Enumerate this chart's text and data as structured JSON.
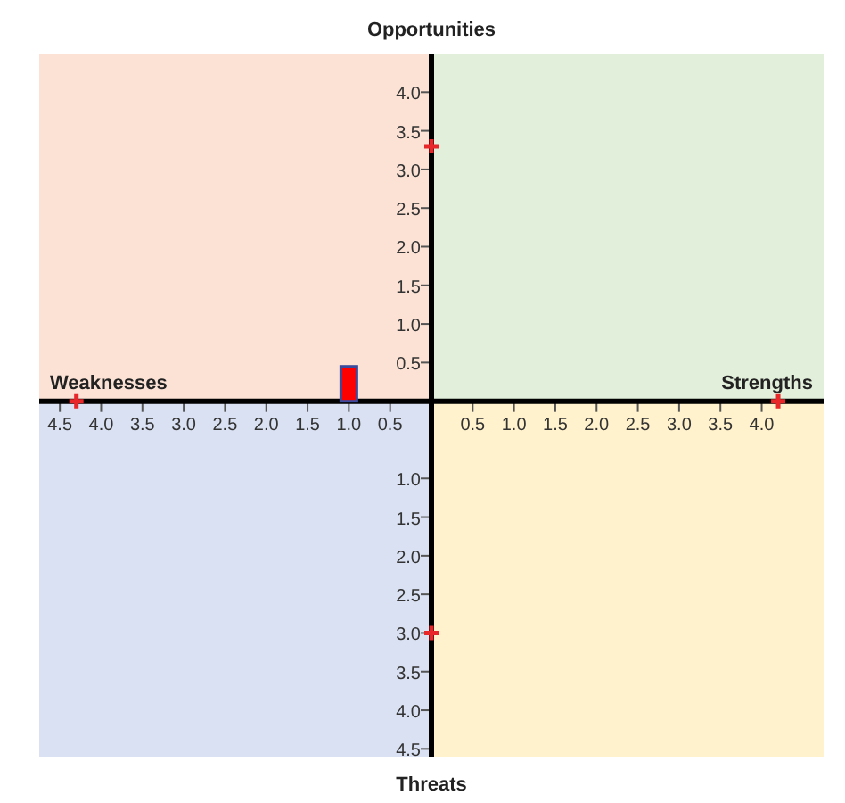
{
  "chart_data": {
    "type": "scatter",
    "xlim": [
      -4.75,
      4.75
    ],
    "ylim": [
      -4.6,
      4.5
    ],
    "xticks": [
      {
        "value": -4.5,
        "label": "4.5"
      },
      {
        "value": -4,
        "label": "4.0"
      },
      {
        "value": -3.5,
        "label": "3.5"
      },
      {
        "value": -3,
        "label": "3.0"
      },
      {
        "value": -2.5,
        "label": "2.5"
      },
      {
        "value": -2,
        "label": "2.0"
      },
      {
        "value": -1.5,
        "label": "1.5"
      },
      {
        "value": -1,
        "label": "1.0"
      },
      {
        "value": -0.5,
        "label": "0.5"
      },
      0.5,
      {
        "value": 1,
        "label": "1.0"
      },
      1.5,
      {
        "value": 2,
        "label": "2.0"
      },
      2.5,
      {
        "value": 3,
        "label": "3.0"
      },
      3.5,
      {
        "value": 4,
        "label": "4.0"
      }
    ],
    "yticks": [
      {
        "value": -4.5,
        "label": "4.5"
      },
      {
        "value": -4,
        "label": "4.0"
      },
      {
        "value": -3.5,
        "label": "3.5"
      },
      {
        "value": -3,
        "label": "3.0"
      },
      {
        "value": -2.5,
        "label": "2.5"
      },
      {
        "value": -2,
        "label": "2.0"
      },
      {
        "value": -1.5,
        "label": "1.5"
      },
      {
        "value": -1,
        "label": "1.0"
      },
      0.5,
      {
        "value": 1,
        "label": "1.0"
      },
      1.5,
      {
        "value": 2,
        "label": "2.0"
      },
      2.5,
      {
        "value": 3,
        "label": "3.0"
      },
      3.5,
      {
        "value": 4,
        "label": "4.0"
      }
    ],
    "marker": "cross",
    "series": [
      {
        "color": "#e8272a",
        "x": [
          4.2,
          -4.3,
          0,
          0
        ],
        "values": [
          0,
          0,
          3.3,
          -3.0
        ]
      },
      {
        "type": "bar",
        "color": "#ff0000",
        "x": [
          -1.0
        ],
        "values": [
          0.45
        ]
      }
    ],
    "annotations": [
      "Opportunities",
      "Weaknesses",
      "Strengths",
      "Threats"
    ]
  }
}
